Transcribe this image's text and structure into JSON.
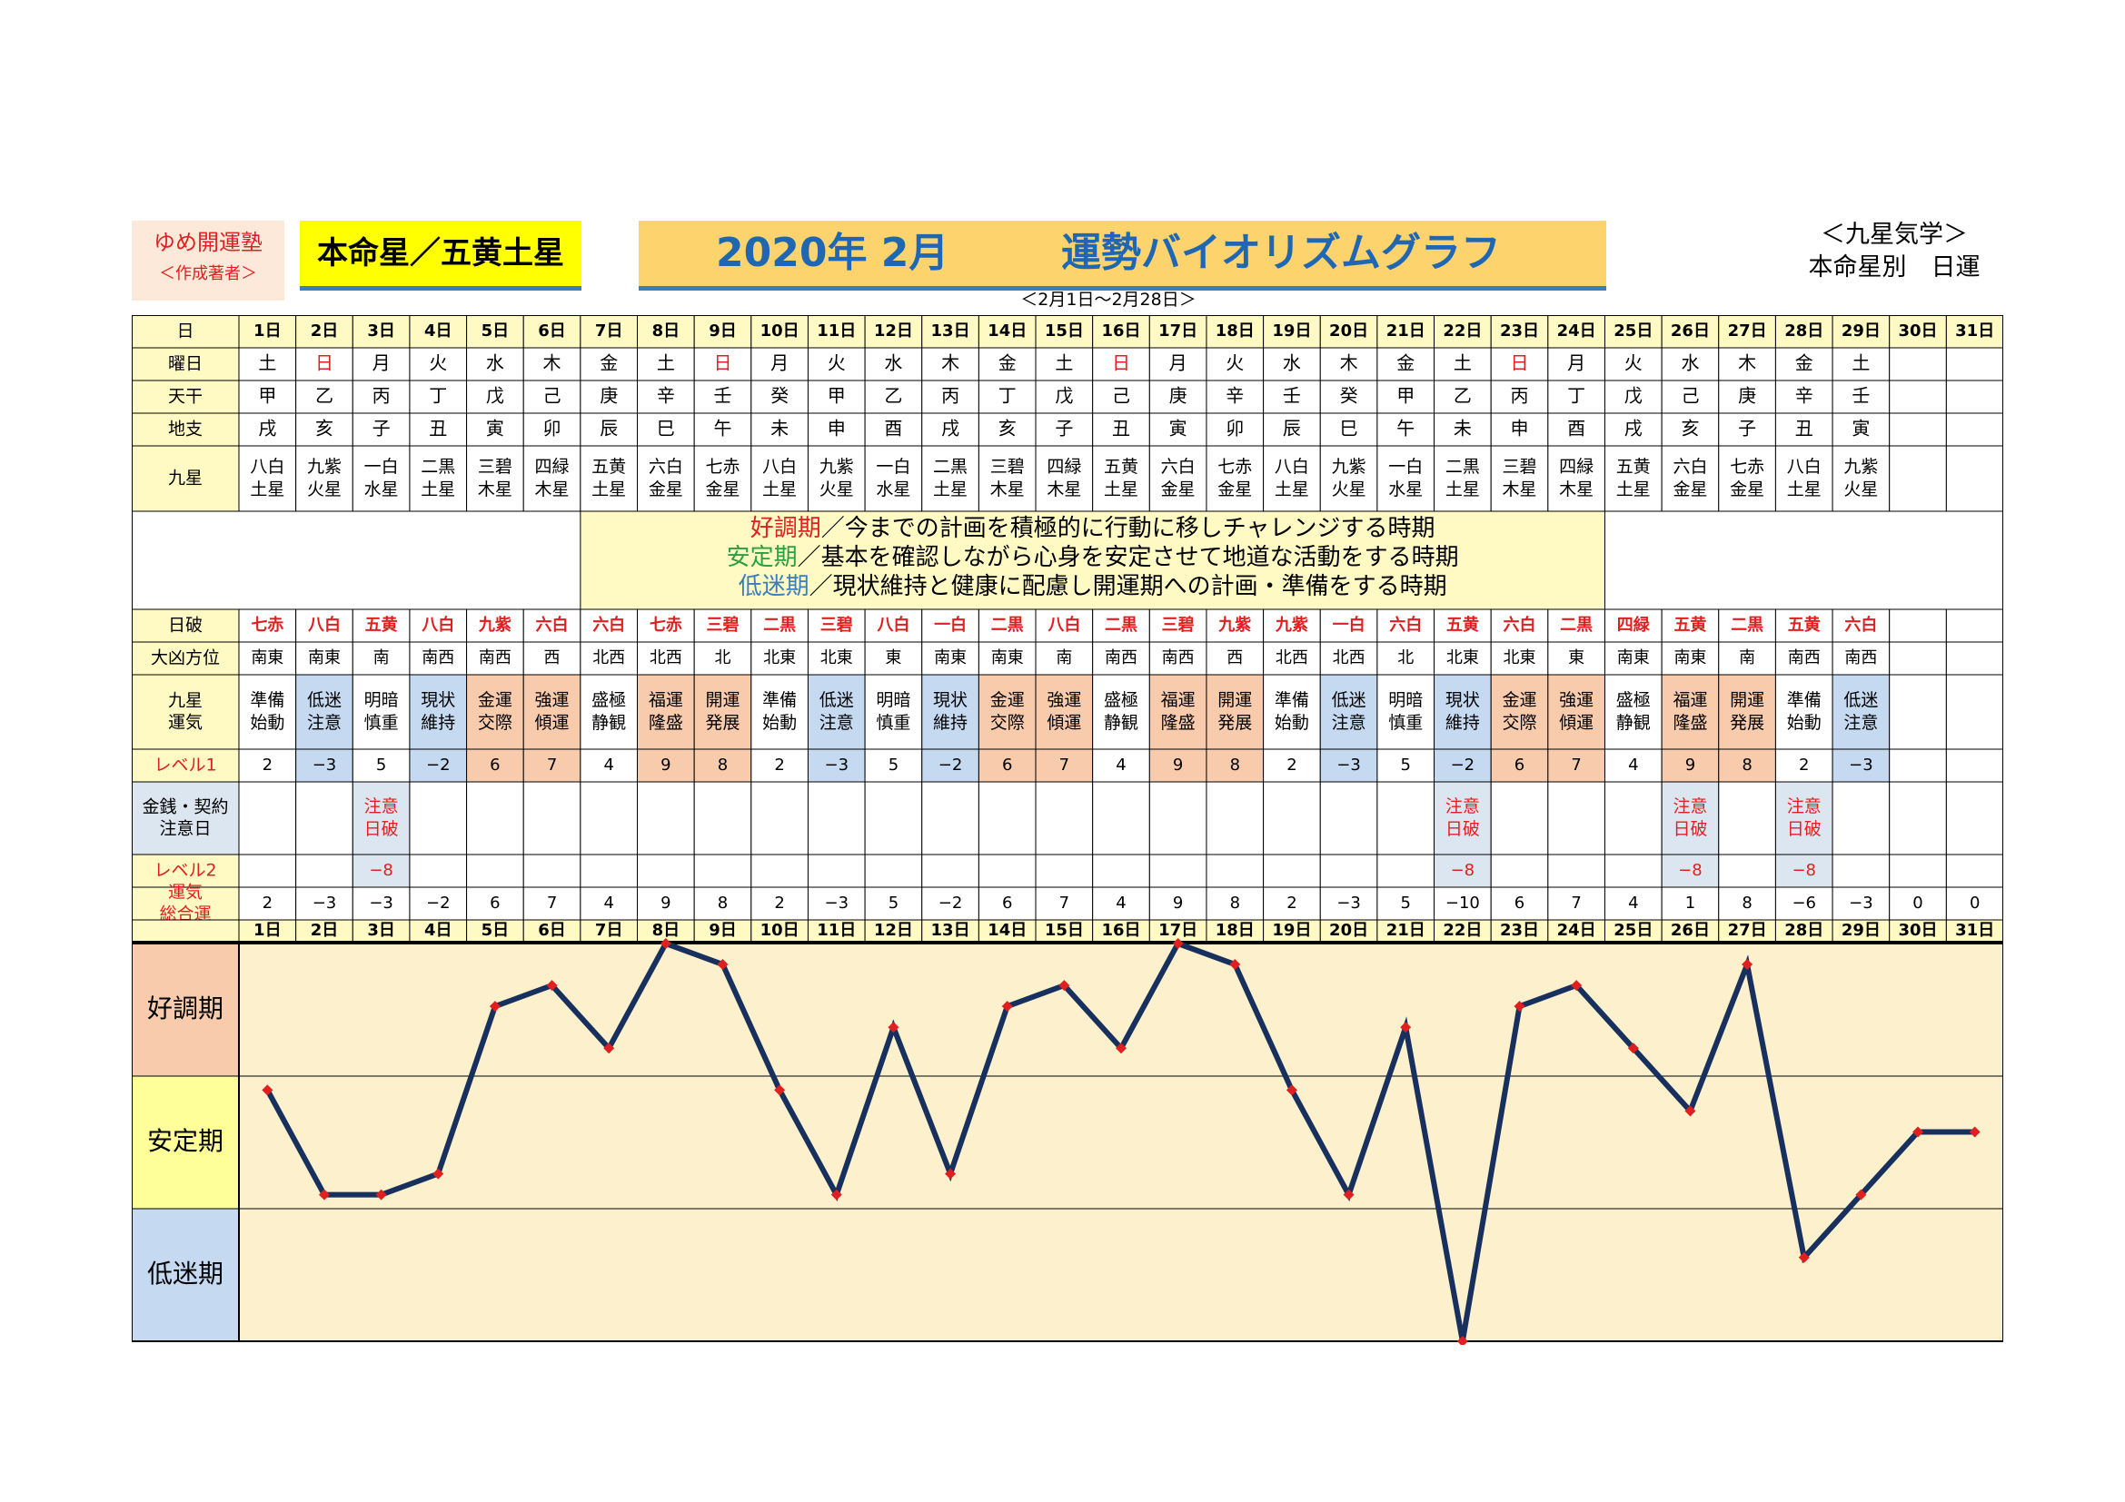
{
  "header": {
    "author_line1": "ゆめ開運塾",
    "author_line2": "＜作成著者＞",
    "honmei": "本命星／五黄土星",
    "title_main": "2020年 2月",
    "title_sub": "運勢バイオリズムグラフ",
    "date_range": "＜2月1日～2月28日＞",
    "top_right_1": "＜九星気学＞",
    "top_right_2": "本命星別　日運"
  },
  "row_labels": {
    "day": "日",
    "weekday": "曜日",
    "tenkan": "天干",
    "chishi": "地支",
    "kyusei": "九星",
    "hiha": "日破",
    "daikyo": "大凶方位",
    "unki": [
      "九星",
      "運気"
    ],
    "level1": "レベル1",
    "kinsen": [
      "金銭・契約",
      "注意日"
    ],
    "level2": "レベル2",
    "total": [
      "運気",
      "総合運"
    ]
  },
  "legend": {
    "lines": [
      {
        "key": "好調期",
        "text": "／今までの計画を積極的に行動に移しチャレンジする時期",
        "color": "#e02020"
      },
      {
        "key": "安定期",
        "text": "／基本を確認しながら心身を安定させて地道な活動をする時期",
        "color": "#2e9e3e"
      },
      {
        "key": "低迷期",
        "text": "／現状維持と健康に配慮し開運期への計画・準備をする時期",
        "color": "#3b7dbf"
      }
    ]
  },
  "table": {
    "days": [
      "1日",
      "2日",
      "3日",
      "4日",
      "5日",
      "6日",
      "7日",
      "8日",
      "9日",
      "10日",
      "11日",
      "12日",
      "13日",
      "14日",
      "15日",
      "16日",
      "17日",
      "18日",
      "19日",
      "20日",
      "21日",
      "22日",
      "23日",
      "24日",
      "25日",
      "26日",
      "27日",
      "28日",
      "29日",
      "30日",
      "31日"
    ],
    "weekday": [
      "土",
      "日",
      "月",
      "火",
      "水",
      "木",
      "金",
      "土",
      "日",
      "月",
      "火",
      "水",
      "木",
      "金",
      "土",
      "日",
      "月",
      "火",
      "水",
      "木",
      "金",
      "土",
      "日",
      "月",
      "火",
      "水",
      "木",
      "金",
      "土",
      "",
      ""
    ],
    "tenkan": [
      "甲",
      "乙",
      "丙",
      "丁",
      "戊",
      "己",
      "庚",
      "辛",
      "壬",
      "癸",
      "甲",
      "乙",
      "丙",
      "丁",
      "戊",
      "己",
      "庚",
      "辛",
      "壬",
      "癸",
      "甲",
      "乙",
      "丙",
      "丁",
      "戊",
      "己",
      "庚",
      "辛",
      "壬",
      "",
      ""
    ],
    "chishi": [
      "戌",
      "亥",
      "子",
      "丑",
      "寅",
      "卯",
      "辰",
      "巳",
      "午",
      "未",
      "申",
      "酉",
      "戌",
      "亥",
      "子",
      "丑",
      "寅",
      "卯",
      "辰",
      "巳",
      "午",
      "未",
      "申",
      "酉",
      "戌",
      "亥",
      "子",
      "丑",
      "寅",
      "",
      ""
    ],
    "kyusei": [
      [
        "八白",
        "土星"
      ],
      [
        "九紫",
        "火星"
      ],
      [
        "一白",
        "水星"
      ],
      [
        "二黒",
        "土星"
      ],
      [
        "三碧",
        "木星"
      ],
      [
        "四緑",
        "木星"
      ],
      [
        "五黄",
        "土星"
      ],
      [
        "六白",
        "金星"
      ],
      [
        "七赤",
        "金星"
      ],
      [
        "八白",
        "土星"
      ],
      [
        "九紫",
        "火星"
      ],
      [
        "一白",
        "水星"
      ],
      [
        "二黒",
        "土星"
      ],
      [
        "三碧",
        "木星"
      ],
      [
        "四緑",
        "木星"
      ],
      [
        "五黄",
        "土星"
      ],
      [
        "六白",
        "金星"
      ],
      [
        "七赤",
        "金星"
      ],
      [
        "八白",
        "土星"
      ],
      [
        "九紫",
        "火星"
      ],
      [
        "一白",
        "水星"
      ],
      [
        "二黒",
        "土星"
      ],
      [
        "三碧",
        "木星"
      ],
      [
        "四緑",
        "木星"
      ],
      [
        "五黄",
        "土星"
      ],
      [
        "六白",
        "金星"
      ],
      [
        "七赤",
        "金星"
      ],
      [
        "八白",
        "土星"
      ],
      [
        "九紫",
        "火星"
      ],
      [
        "",
        ""
      ],
      [
        "",
        ""
      ]
    ],
    "hiha": [
      "七赤",
      "八白",
      "五黄",
      "八白",
      "九紫",
      "六白",
      "六白",
      "七赤",
      "三碧",
      "二黒",
      "三碧",
      "八白",
      "一白",
      "二黒",
      "八白",
      "二黒",
      "三碧",
      "九紫",
      "九紫",
      "一白",
      "六白",
      "五黄",
      "六白",
      "二黒",
      "四緑",
      "五黄",
      "二黒",
      "五黄",
      "六白",
      "",
      ""
    ],
    "daikyo": [
      "南東",
      "南東",
      "南",
      "南西",
      "南西",
      "西",
      "北西",
      "北西",
      "北",
      "北東",
      "北東",
      "東",
      "南東",
      "南東",
      "南",
      "南西",
      "南西",
      "西",
      "北西",
      "北西",
      "北",
      "北東",
      "北東",
      "東",
      "南東",
      "南東",
      "南",
      "南西",
      "南西",
      "",
      ""
    ],
    "unki": [
      [
        "準備",
        "始動"
      ],
      [
        "低迷",
        "注意"
      ],
      [
        "明暗",
        "慎重"
      ],
      [
        "現状",
        "維持"
      ],
      [
        "金運",
        "交際"
      ],
      [
        "強運",
        "傾運"
      ],
      [
        "盛極",
        "静観"
      ],
      [
        "福運",
        "隆盛"
      ],
      [
        "開運",
        "発展"
      ],
      [
        "準備",
        "始動"
      ],
      [
        "低迷",
        "注意"
      ],
      [
        "明暗",
        "慎重"
      ],
      [
        "現状",
        "維持"
      ],
      [
        "金運",
        "交際"
      ],
      [
        "強運",
        "傾運"
      ],
      [
        "盛極",
        "静観"
      ],
      [
        "福運",
        "隆盛"
      ],
      [
        "開運",
        "発展"
      ],
      [
        "準備",
        "始動"
      ],
      [
        "低迷",
        "注意"
      ],
      [
        "明暗",
        "慎重"
      ],
      [
        "現状",
        "維持"
      ],
      [
        "金運",
        "交際"
      ],
      [
        "強運",
        "傾運"
      ],
      [
        "盛極",
        "静観"
      ],
      [
        "福運",
        "隆盛"
      ],
      [
        "開運",
        "発展"
      ],
      [
        "準備",
        "始動"
      ],
      [
        "低迷",
        "注意"
      ],
      [
        "",
        ""
      ],
      [
        "",
        ""
      ]
    ],
    "level1": [
      "2",
      "−3",
      "5",
      "−2",
      "6",
      "7",
      "4",
      "9",
      "8",
      "2",
      "−3",
      "5",
      "−2",
      "6",
      "7",
      "4",
      "9",
      "8",
      "2",
      "−3",
      "5",
      "−2",
      "6",
      "7",
      "4",
      "9",
      "8",
      "2",
      "−3",
      "",
      ""
    ],
    "kinsen": [
      [
        "",
        ""
      ],
      [
        "",
        ""
      ],
      [
        "注意",
        "日破"
      ],
      [
        "",
        ""
      ],
      [
        "",
        ""
      ],
      [
        "",
        ""
      ],
      [
        "",
        ""
      ],
      [
        "",
        ""
      ],
      [
        "",
        ""
      ],
      [
        "",
        ""
      ],
      [
        "",
        ""
      ],
      [
        "",
        ""
      ],
      [
        "",
        ""
      ],
      [
        "",
        ""
      ],
      [
        "",
        ""
      ],
      [
        "",
        ""
      ],
      [
        "",
        ""
      ],
      [
        "",
        ""
      ],
      [
        "",
        ""
      ],
      [
        "",
        ""
      ],
      [
        "",
        ""
      ],
      [
        "注意",
        "日破"
      ],
      [
        "",
        ""
      ],
      [
        "",
        ""
      ],
      [
        "",
        ""
      ],
      [
        "注意",
        "日破"
      ],
      [
        "",
        ""
      ],
      [
        "注意",
        "日破"
      ],
      [
        "",
        ""
      ],
      [
        "",
        ""
      ],
      [
        "",
        ""
      ]
    ],
    "level2": [
      "",
      "",
      "−8",
      "",
      "",
      "",
      "",
      "",
      "",
      "",
      "",
      "",
      "",
      "",
      "",
      "",
      "",
      "",
      "",
      "",
      "",
      "−8",
      "",
      "",
      "",
      "−8",
      "",
      "−8",
      "",
      "",
      ""
    ],
    "total": [
      "2",
      "−3",
      "−3",
      "−2",
      "6",
      "7",
      "4",
      "9",
      "8",
      "2",
      "−3",
      "5",
      "−2",
      "6",
      "7",
      "4",
      "9",
      "8",
      "2",
      "−3",
      "5",
      "−10",
      "6",
      "7",
      "4",
      "1",
      "8",
      "−6",
      "−3",
      "0",
      "0"
    ]
  },
  "colors": {
    "header_row": "#fff9c4",
    "unki_good": "#f8cbad",
    "unki_bad": "#c5d9f1",
    "kinsen_mark": "#dce6f1",
    "band_good": "#f8cbad",
    "band_stable": "#ffff99",
    "band_low": "#c5d9f1",
    "plot_bg": "#fdf0cc",
    "line": "#17305e",
    "marker": "#e02020",
    "red_text": "#e02020"
  },
  "chart_data": {
    "type": "line",
    "categories": [
      "1日",
      "2日",
      "3日",
      "4日",
      "5日",
      "6日",
      "7日",
      "8日",
      "9日",
      "10日",
      "11日",
      "12日",
      "13日",
      "14日",
      "15日",
      "16日",
      "17日",
      "18日",
      "19日",
      "20日",
      "21日",
      "22日",
      "23日",
      "24日",
      "25日",
      "26日",
      "27日",
      "28日",
      "29日",
      "30日",
      "31日"
    ],
    "values": [
      2,
      -3,
      -3,
      -2,
      6,
      7,
      4,
      9,
      8,
      2,
      -3,
      5,
      -2,
      6,
      7,
      4,
      9,
      8,
      2,
      -3,
      5,
      -10,
      6,
      7,
      4,
      1,
      8,
      -6,
      -3,
      0,
      0
    ],
    "bands": [
      "好調期",
      "安定期",
      "低迷期"
    ],
    "ylim": [
      -10,
      9
    ],
    "grid": false
  }
}
